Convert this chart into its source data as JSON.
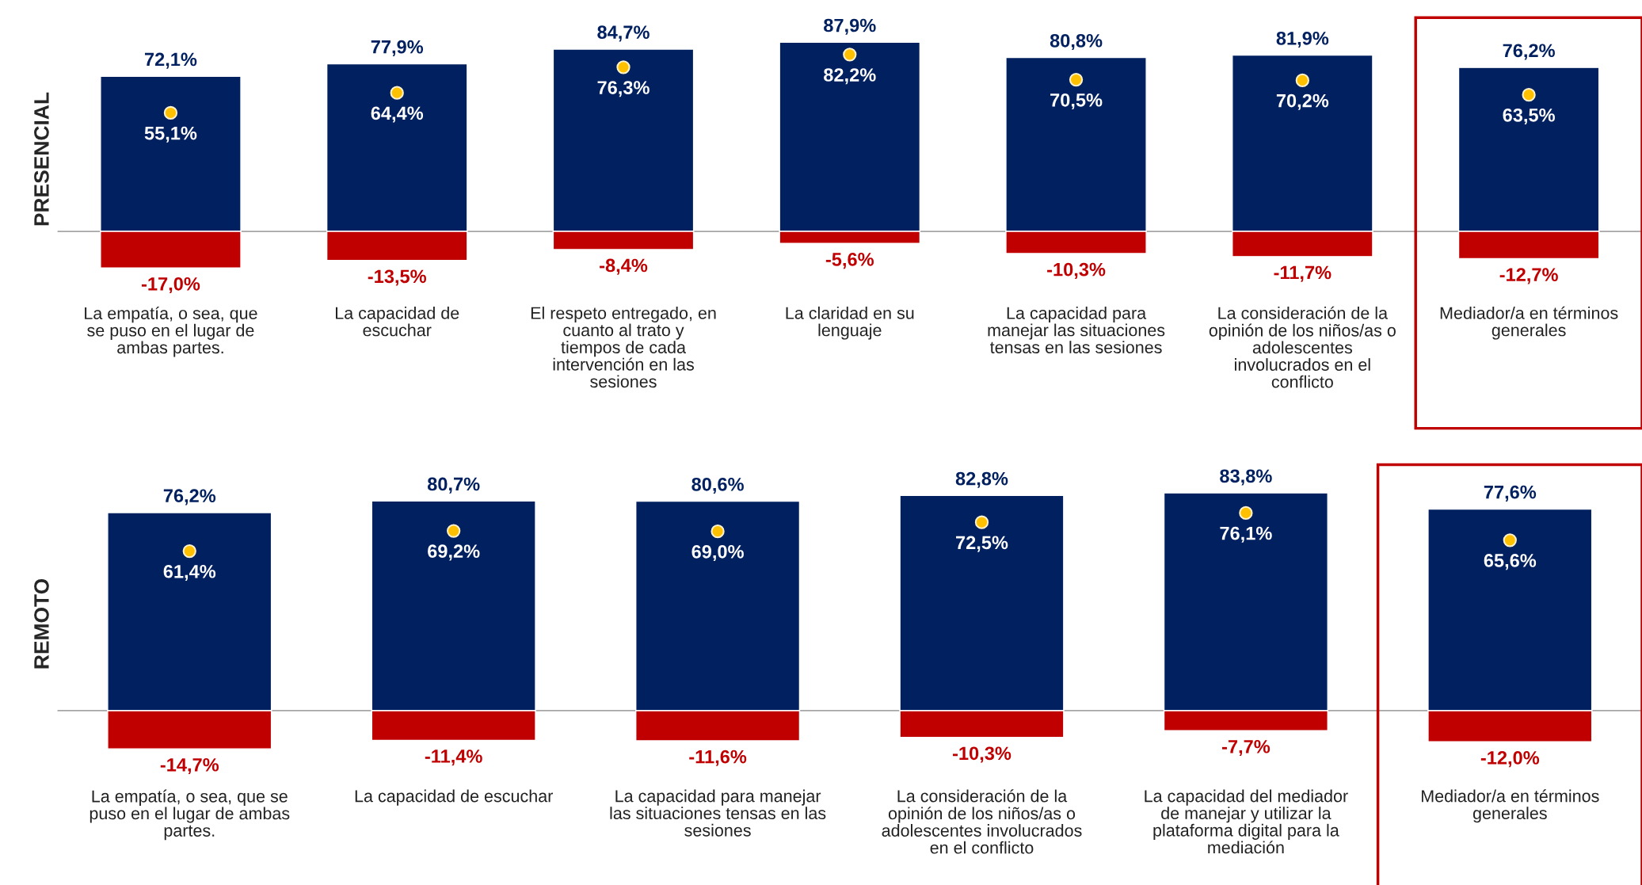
{
  "chart_data": [
    {
      "type": "bar",
      "stacked": true,
      "ylabel": "PRESENCIAL",
      "categories": [
        "La empatía, o sea, que\nse puso en el lugar de\nambas partes.",
        "La capacidad de\nescuchar",
        "El respeto entregado, en\ncuanto al trato y\ntiempos de cada\nintervención en las\nsesiones",
        "La claridad en su\nlenguaje",
        "La capacidad para\nmanejar las situaciones\ntensas en las sesiones",
        "La consideración de la\nopinión de los niños/as o\nadolescentes\ninvolucrados en el\nconflicto",
        "Mediador/a en términos\ngenerales"
      ],
      "series": [
        {
          "type": "bar",
          "color": "#002060",
          "values": [
            72.1,
            77.9,
            84.7,
            87.9,
            80.8,
            81.9,
            76.2
          ],
          "value_labels": [
            "72,1%",
            "77,9%",
            "84,7%",
            "87,9%",
            "80,8%",
            "81,9%",
            "76,2%"
          ]
        },
        {
          "type": "bar",
          "color": "#c00000",
          "values": [
            -17.0,
            -13.5,
            -8.4,
            -5.6,
            -10.3,
            -11.7,
            -12.7
          ],
          "value_labels": [
            "-17,0%",
            "-13,5%",
            "-8,4%",
            "-5,6%",
            "-10,3%",
            "-11,7%",
            "-12,7%"
          ]
        },
        {
          "type": "scatter",
          "color": "#ffc000",
          "values": [
            55.1,
            64.4,
            76.3,
            82.2,
            70.5,
            70.2,
            63.5
          ],
          "value_labels": [
            "55,1%",
            "64,4%",
            "76,3%",
            "82,2%",
            "70,5%",
            "70,2%",
            "63,5%"
          ]
        }
      ]
    },
    {
      "type": "bar",
      "stacked": true,
      "ylabel": "REMOTO",
      "categories": [
        "La empatía, o sea, que se\npuso en el lugar de ambas\npartes.",
        "La capacidad de escuchar",
        "La capacidad para manejar\nlas situaciones tensas en las\nsesiones",
        "La consideración de la\nopinión de los niños/as o\nadolescentes involucrados\nen el conflicto",
        "La capacidad del mediador\nde manejar y utilizar la\nplataforma digital para la\nmediación",
        "Mediador/a en términos\ngenerales"
      ],
      "series": [
        {
          "type": "bar",
          "color": "#002060",
          "values": [
            76.2,
            80.7,
            80.6,
            82.8,
            83.8,
            77.6
          ],
          "value_labels": [
            "76,2%",
            "80,7%",
            "80,6%",
            "82,8%",
            "83,8%",
            "77,6%"
          ]
        },
        {
          "type": "bar",
          "color": "#c00000",
          "values": [
            -14.7,
            -11.4,
            -11.6,
            -10.3,
            -7.7,
            -12.0
          ],
          "value_labels": [
            "-14,7%",
            "-11,4%",
            "-11,6%",
            "-10,3%",
            "-7,7%",
            "-12,0%"
          ]
        },
        {
          "type": "scatter",
          "color": "#ffc000",
          "values": [
            61.4,
            69.2,
            69.0,
            72.5,
            76.1,
            65.6
          ],
          "value_labels": [
            "61,4%",
            "69,2%",
            "69,0%",
            "72,5%",
            "76,1%",
            "65,6%"
          ]
        }
      ]
    }
  ]
}
